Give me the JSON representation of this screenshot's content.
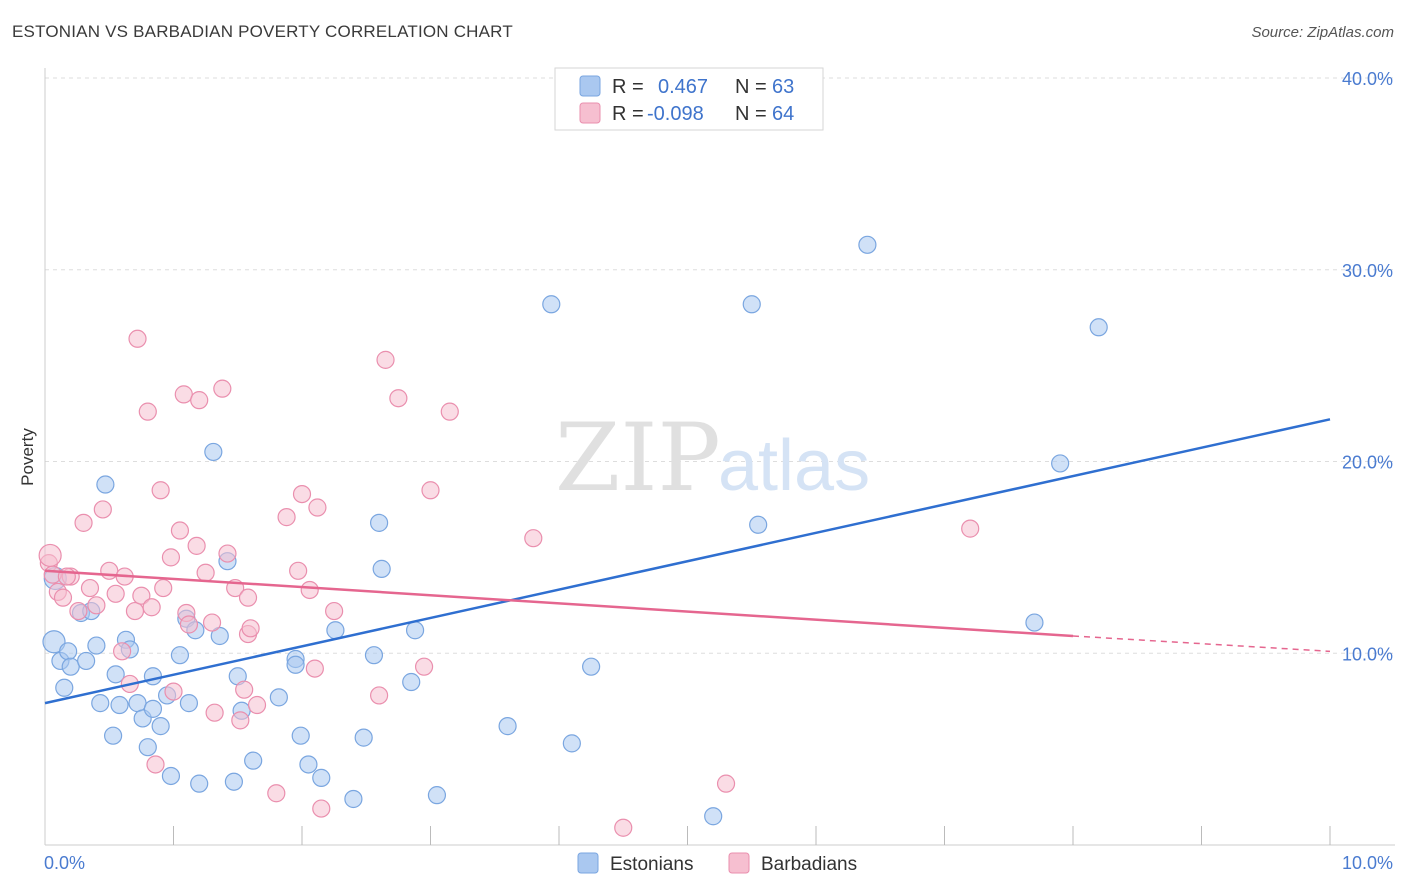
{
  "title": "ESTONIAN VS BARBADIAN POVERTY CORRELATION CHART",
  "source": "Source: ZipAtlas.com",
  "watermark": {
    "zip": "ZIP",
    "atlas": "atlas"
  },
  "legend": {
    "rows": [
      {
        "r_label": "R =",
        "r_value": "0.467",
        "n_label": "N =",
        "n_value": "63"
      },
      {
        "r_label": "R =",
        "r_value": "-0.098",
        "n_label": "N =",
        "n_value": "64"
      }
    ]
  },
  "bottom_legend": [
    "Estonians",
    "Barbadians"
  ],
  "colors": {
    "estonian_fill": "#aac8f0",
    "estonian_stroke": "#7aa6e0",
    "estonian_line": "#2f6fd0",
    "barbadian_fill": "#f6bfd0",
    "barbadian_stroke": "#ea8fae",
    "barbadian_line": "#e5668f",
    "tick_text": "#4a7bd0",
    "grid": "#dddddd"
  },
  "chart_data": {
    "type": "scatter",
    "xlabel": "",
    "ylabel": "Poverty",
    "xlim": [
      0,
      10
    ],
    "ylim": [
      0,
      40
    ],
    "x_tick_labels": [
      "0.0%",
      "10.0%"
    ],
    "y_ticks": [
      10,
      20,
      30,
      40
    ],
    "y_tick_labels": [
      "10.0%",
      "20.0%",
      "30.0%",
      "40.0%"
    ],
    "grid": true,
    "legend_position": "top-center",
    "series": [
      {
        "name": "Estonians",
        "points": [
          [
            0.08,
            13.9
          ],
          [
            0.07,
            10.6
          ],
          [
            0.12,
            9.6
          ],
          [
            0.15,
            8.2
          ],
          [
            0.18,
            10.1
          ],
          [
            0.2,
            9.3
          ],
          [
            0.28,
            12.1
          ],
          [
            0.32,
            9.6
          ],
          [
            0.36,
            12.2
          ],
          [
            0.4,
            10.4
          ],
          [
            0.43,
            7.4
          ],
          [
            0.47,
            18.8
          ],
          [
            0.53,
            5.7
          ],
          [
            0.55,
            8.9
          ],
          [
            0.58,
            7.3
          ],
          [
            0.63,
            10.7
          ],
          [
            0.66,
            10.2
          ],
          [
            0.72,
            7.4
          ],
          [
            0.76,
            6.6
          ],
          [
            0.8,
            5.1
          ],
          [
            0.84,
            8.8
          ],
          [
            0.84,
            7.1
          ],
          [
            0.9,
            6.2
          ],
          [
            0.95,
            7.8
          ],
          [
            0.98,
            3.6
          ],
          [
            1.05,
            9.9
          ],
          [
            1.1,
            11.8
          ],
          [
            1.12,
            7.4
          ],
          [
            1.17,
            11.2
          ],
          [
            1.2,
            3.2
          ],
          [
            1.31,
            20.5
          ],
          [
            1.36,
            10.9
          ],
          [
            1.42,
            14.8
          ],
          [
            1.47,
            3.3
          ],
          [
            1.5,
            8.8
          ],
          [
            1.53,
            7.0
          ],
          [
            1.62,
            4.4
          ],
          [
            1.82,
            7.7
          ],
          [
            1.95,
            9.7
          ],
          [
            1.95,
            9.4
          ],
          [
            1.99,
            5.7
          ],
          [
            2.05,
            4.2
          ],
          [
            2.15,
            3.5
          ],
          [
            2.26,
            11.2
          ],
          [
            2.4,
            2.4
          ],
          [
            2.48,
            5.6
          ],
          [
            2.56,
            9.9
          ],
          [
            2.6,
            16.8
          ],
          [
            2.62,
            14.4
          ],
          [
            2.85,
            8.5
          ],
          [
            2.88,
            11.2
          ],
          [
            3.05,
            2.6
          ],
          [
            3.6,
            6.2
          ],
          [
            3.94,
            28.2
          ],
          [
            4.1,
            5.3
          ],
          [
            4.25,
            9.3
          ],
          [
            5.2,
            1.5
          ],
          [
            5.5,
            28.2
          ],
          [
            5.55,
            16.7
          ],
          [
            6.4,
            31.3
          ],
          [
            7.7,
            11.6
          ],
          [
            7.9,
            19.9
          ],
          [
            8.2,
            27.0
          ]
        ],
        "trend": {
          "x": [
            0,
            10
          ],
          "y": [
            7.4,
            22.2
          ]
        }
      },
      {
        "name": "Barbadians",
        "points": [
          [
            0.03,
            14.7
          ],
          [
            0.06,
            14.1
          ],
          [
            0.1,
            13.2
          ],
          [
            0.14,
            12.9
          ],
          [
            0.2,
            14.0
          ],
          [
            0.26,
            12.2
          ],
          [
            0.3,
            16.8
          ],
          [
            0.35,
            13.4
          ],
          [
            0.4,
            12.5
          ],
          [
            0.45,
            17.5
          ],
          [
            0.5,
            14.3
          ],
          [
            0.55,
            13.1
          ],
          [
            0.6,
            10.1
          ],
          [
            0.62,
            14.0
          ],
          [
            0.66,
            8.4
          ],
          [
            0.7,
            12.2
          ],
          [
            0.72,
            26.4
          ],
          [
            0.75,
            13.0
          ],
          [
            0.8,
            22.6
          ],
          [
            0.83,
            12.4
          ],
          [
            0.86,
            4.2
          ],
          [
            0.9,
            18.5
          ],
          [
            0.92,
            13.4
          ],
          [
            0.98,
            15.0
          ],
          [
            1.0,
            8.0
          ],
          [
            1.05,
            16.4
          ],
          [
            1.08,
            23.5
          ],
          [
            1.1,
            12.1
          ],
          [
            1.12,
            11.5
          ],
          [
            1.18,
            15.6
          ],
          [
            1.2,
            23.2
          ],
          [
            1.25,
            14.2
          ],
          [
            1.3,
            11.6
          ],
          [
            1.32,
            6.9
          ],
          [
            1.38,
            23.8
          ],
          [
            1.42,
            15.2
          ],
          [
            1.48,
            13.4
          ],
          [
            1.52,
            6.5
          ],
          [
            1.55,
            8.1
          ],
          [
            1.58,
            11.0
          ],
          [
            1.6,
            11.3
          ],
          [
            1.65,
            7.3
          ],
          [
            1.8,
            2.7
          ],
          [
            1.88,
            17.1
          ],
          [
            1.97,
            14.3
          ],
          [
            2.0,
            18.3
          ],
          [
            2.06,
            13.3
          ],
          [
            2.1,
            9.2
          ],
          [
            2.12,
            17.6
          ],
          [
            2.15,
            1.9
          ],
          [
            2.25,
            12.2
          ],
          [
            2.6,
            7.8
          ],
          [
            2.65,
            25.3
          ],
          [
            2.75,
            23.3
          ],
          [
            2.95,
            9.3
          ],
          [
            3.0,
            18.5
          ],
          [
            3.15,
            22.6
          ],
          [
            3.8,
            16.0
          ],
          [
            4.5,
            0.9
          ],
          [
            5.3,
            3.2
          ],
          [
            7.2,
            16.5
          ],
          [
            0.17,
            14.0
          ],
          [
            0.04,
            15.1
          ],
          [
            1.58,
            12.9
          ]
        ],
        "trend": {
          "x": [
            0,
            8.0
          ],
          "y": [
            14.3,
            10.9
          ]
        },
        "trend_dashed": {
          "x": [
            8.0,
            10
          ],
          "y": [
            10.9,
            10.1
          ]
        }
      }
    ]
  }
}
